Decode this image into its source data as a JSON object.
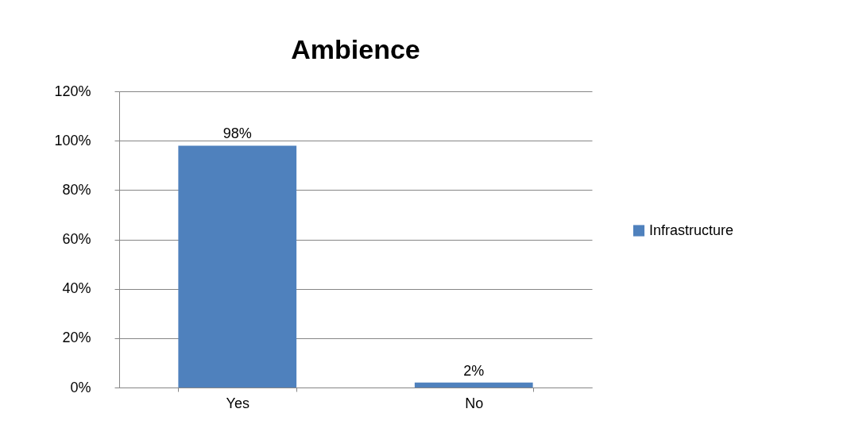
{
  "chart_data": {
    "type": "bar",
    "title": "Ambience",
    "categories": [
      "Yes",
      "No"
    ],
    "series": [
      {
        "name": "Infrastructure",
        "color": "#4f81bd",
        "values": [
          98,
          2
        ],
        "value_labels": [
          "98%",
          "2%"
        ]
      }
    ],
    "ylim": [
      0,
      120
    ],
    "yticks": [
      {
        "value": 0,
        "label": "0%"
      },
      {
        "value": 20,
        "label": "20%"
      },
      {
        "value": 40,
        "label": "40%"
      },
      {
        "value": 60,
        "label": "60%"
      },
      {
        "value": 80,
        "label": "80%"
      },
      {
        "value": 100,
        "label": "100%"
      },
      {
        "value": 120,
        "label": "120%"
      }
    ],
    "grid": "y",
    "legend": "right"
  }
}
